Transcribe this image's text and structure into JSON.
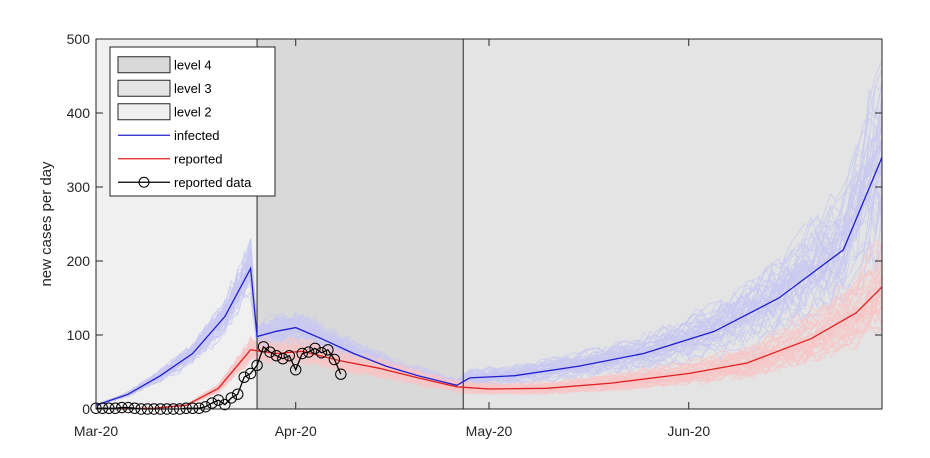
{
  "chart_data": {
    "type": "line",
    "title": "",
    "xlabel": "",
    "ylabel": "new cases per day",
    "x_range": [
      "2020-03-01",
      "2020-07-01"
    ],
    "ylim": [
      0,
      500
    ],
    "yticks": [
      0,
      100,
      200,
      300,
      400,
      500
    ],
    "xticks": [
      {
        "date": "2020-03-01",
        "label": "Mar-20"
      },
      {
        "date": "2020-04-01",
        "label": "Apr-20"
      },
      {
        "date": "2020-05-01",
        "label": "May-20"
      },
      {
        "date": "2020-06-01",
        "label": "Jun-20"
      }
    ],
    "grid": false,
    "legend_position": "top-left",
    "shaded_periods": [
      {
        "name": "level 4",
        "start": "2020-03-26",
        "end": "2020-04-27",
        "color": "#d9d9d9"
      },
      {
        "name": "level 3",
        "start": "2020-04-27",
        "end": "2020-07-01",
        "color": "#e4e4e4"
      },
      {
        "name": "level 2",
        "start": "2020-03-01",
        "end": "2020-03-26",
        "color": "#f0f0f0"
      }
    ],
    "series": [
      {
        "name": "infected",
        "color": "#1f1fd0",
        "ensemble_color": "#c8c8f2",
        "points": [
          [
            "2020-03-01",
            5
          ],
          [
            "2020-03-06",
            20
          ],
          [
            "2020-03-11",
            45
          ],
          [
            "2020-03-16",
            75
          ],
          [
            "2020-03-21",
            125
          ],
          [
            "2020-03-25",
            190
          ],
          [
            "2020-03-26",
            98
          ],
          [
            "2020-03-29",
            105
          ],
          [
            "2020-04-01",
            110
          ],
          [
            "2020-04-05",
            95
          ],
          [
            "2020-04-10",
            75
          ],
          [
            "2020-04-15",
            58
          ],
          [
            "2020-04-20",
            45
          ],
          [
            "2020-04-26",
            32
          ],
          [
            "2020-04-28",
            42
          ],
          [
            "2020-05-05",
            45
          ],
          [
            "2020-05-15",
            58
          ],
          [
            "2020-05-25",
            75
          ],
          [
            "2020-06-05",
            105
          ],
          [
            "2020-06-15",
            150
          ],
          [
            "2020-06-25",
            215
          ],
          [
            "2020-07-01",
            340
          ]
        ]
      },
      {
        "name": "reported",
        "color": "#e02020",
        "ensemble_color": "#f8c6c6",
        "points": [
          [
            "2020-03-01",
            0
          ],
          [
            "2020-03-10",
            1
          ],
          [
            "2020-03-15",
            5
          ],
          [
            "2020-03-20",
            28
          ],
          [
            "2020-03-25",
            80
          ],
          [
            "2020-03-29",
            75
          ],
          [
            "2020-04-02",
            78
          ],
          [
            "2020-04-08",
            65
          ],
          [
            "2020-04-14",
            55
          ],
          [
            "2020-04-20",
            42
          ],
          [
            "2020-04-26",
            30
          ],
          [
            "2020-05-01",
            27
          ],
          [
            "2020-05-10",
            28
          ],
          [
            "2020-05-20",
            35
          ],
          [
            "2020-06-01",
            48
          ],
          [
            "2020-06-10",
            62
          ],
          [
            "2020-06-20",
            95
          ],
          [
            "2020-06-27",
            130
          ],
          [
            "2020-07-01",
            165
          ]
        ]
      },
      {
        "name": "reported data",
        "color": "#000000",
        "marker": "circle",
        "points": [
          [
            "2020-03-01",
            1
          ],
          [
            "2020-03-02",
            1
          ],
          [
            "2020-03-03",
            1
          ],
          [
            "2020-03-04",
            1
          ],
          [
            "2020-03-05",
            2
          ],
          [
            "2020-03-06",
            2
          ],
          [
            "2020-03-07",
            1
          ],
          [
            "2020-03-08",
            0
          ],
          [
            "2020-03-09",
            0
          ],
          [
            "2020-03-10",
            0
          ],
          [
            "2020-03-11",
            0
          ],
          [
            "2020-03-12",
            0
          ],
          [
            "2020-03-13",
            0
          ],
          [
            "2020-03-14",
            0
          ],
          [
            "2020-03-15",
            1
          ],
          [
            "2020-03-16",
            1
          ],
          [
            "2020-03-17",
            1
          ],
          [
            "2020-03-18",
            3
          ],
          [
            "2020-03-19",
            8
          ],
          [
            "2020-03-20",
            12
          ],
          [
            "2020-03-21",
            6
          ],
          [
            "2020-03-22",
            15
          ],
          [
            "2020-03-23",
            20
          ],
          [
            "2020-03-24",
            43
          ],
          [
            "2020-03-25",
            48
          ],
          [
            "2020-03-26",
            59
          ],
          [
            "2020-03-27",
            84
          ],
          [
            "2020-03-28",
            77
          ],
          [
            "2020-03-29",
            72
          ],
          [
            "2020-03-30",
            68
          ],
          [
            "2020-03-31",
            72
          ],
          [
            "2020-04-01",
            53
          ],
          [
            "2020-04-02",
            75
          ],
          [
            "2020-04-03",
            77
          ],
          [
            "2020-04-04",
            82
          ],
          [
            "2020-04-05",
            76
          ],
          [
            "2020-04-06",
            80
          ],
          [
            "2020-04-07",
            67
          ],
          [
            "2020-04-08",
            47
          ]
        ]
      }
    ],
    "legend": [
      "level 4",
      "level 3",
      "level 2",
      "infected",
      "reported",
      "reported data"
    ]
  }
}
